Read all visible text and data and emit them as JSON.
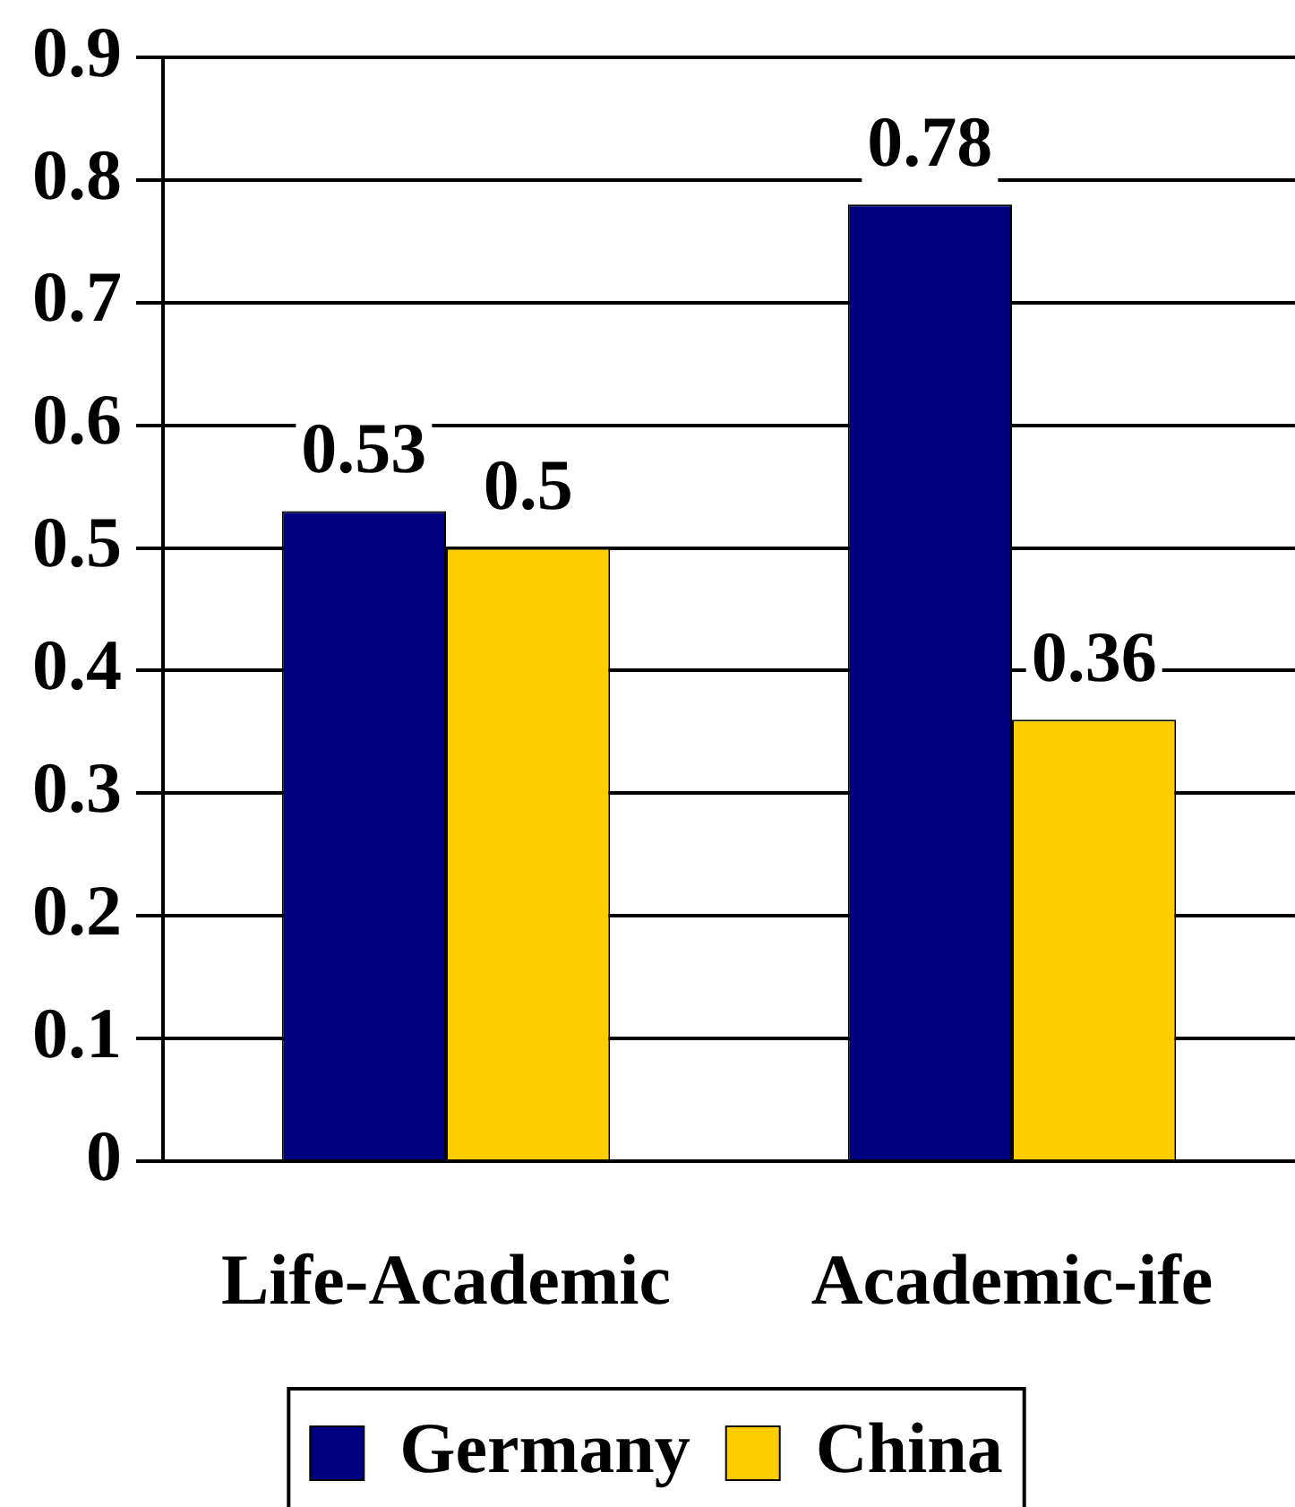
{
  "chart_data": {
    "type": "bar",
    "categories": [
      "Life-Academic",
      "Academic-ife"
    ],
    "series": [
      {
        "name": "Germany",
        "color": "#000080",
        "values": [
          0.53,
          0.78
        ]
      },
      {
        "name": "China",
        "color": "#ffcc00",
        "values": [
          0.5,
          0.36
        ]
      }
    ],
    "ylim": [
      0,
      0.9
    ],
    "yticks": [
      0,
      0.1,
      0.2,
      0.3,
      0.4,
      0.5,
      0.6,
      0.7,
      0.8,
      0.9
    ],
    "grid": "y",
    "legend": "bottom",
    "data_labels": true
  }
}
